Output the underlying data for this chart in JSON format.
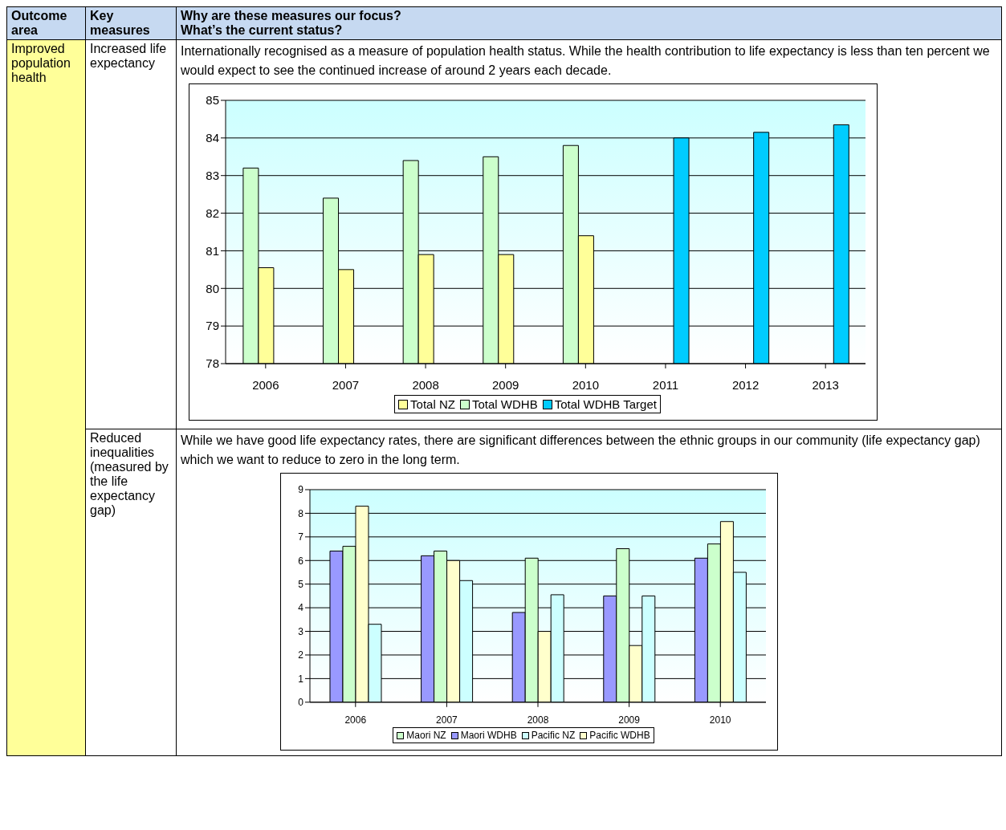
{
  "chart_data": [
    {
      "type": "bar",
      "annotations": [
        "Outcome area",
        "Key measures",
        "Why are these measures our focus?",
        "What’s the current status?",
        "Improved population health",
        "Increased life expectancy",
        "Internationally recognised as a measure of population health status.  While the health contribution to life expectancy is less than ten percent we would expect to see the continued increase of around 2 years each decade."
      ],
      "categories": [
        "2006",
        "2007",
        "2008",
        "2009",
        "2010",
        "2011",
        "2012",
        "2013"
      ],
      "series": [
        {
          "name": "Total WDHB",
          "color": "#ccffcc",
          "values": [
            83.2,
            82.4,
            83.4,
            83.5,
            83.8,
            null,
            null,
            null
          ]
        },
        {
          "name": "Total NZ",
          "color": "#ffff99",
          "values": [
            80.55,
            80.5,
            80.9,
            80.9,
            81.4,
            null,
            null,
            null
          ]
        },
        {
          "name": "Total WDHB Target",
          "color": "#00ccff",
          "values": [
            null,
            null,
            null,
            null,
            null,
            84.0,
            84.15,
            84.35
          ]
        }
      ],
      "ylim": [
        78,
        85
      ],
      "yticks": [
        78,
        79,
        80,
        81,
        82,
        83,
        84,
        85
      ],
      "grid": "y",
      "legend": "bottom"
    },
    {
      "type": "bar",
      "annotations": [
        "Reduced inequalities (measured by the life expectancy gap)",
        "While we have good life expectancy rates, there are significant differences between the ethnic groups in our community (life expectancy gap) which we want to reduce to zero in the long term."
      ],
      "categories": [
        "2006",
        "2007",
        "2008",
        "2009",
        "2010"
      ],
      "series": [
        {
          "name": "Maori WDHB",
          "color": "#9999ff",
          "values": [
            6.4,
            6.2,
            3.8,
            4.5,
            6.1
          ]
        },
        {
          "name": "Maori NZ",
          "color": "#ccffcc",
          "values": [
            6.6,
            6.4,
            6.1,
            6.5,
            6.7
          ]
        },
        {
          "name": "Pacific WDHB",
          "color": "#ffffcc",
          "values": [
            8.3,
            6.0,
            3.0,
            2.4,
            7.65
          ]
        },
        {
          "name": "Pacific NZ",
          "color": "#ccffff",
          "values": [
            3.3,
            5.15,
            4.55,
            4.5,
            5.5
          ]
        }
      ],
      "ylim": [
        0,
        9
      ],
      "yticks": [
        0,
        1,
        2,
        3,
        4,
        5,
        6,
        7,
        8,
        9
      ],
      "grid": "y",
      "legend": "bottom"
    }
  ]
}
